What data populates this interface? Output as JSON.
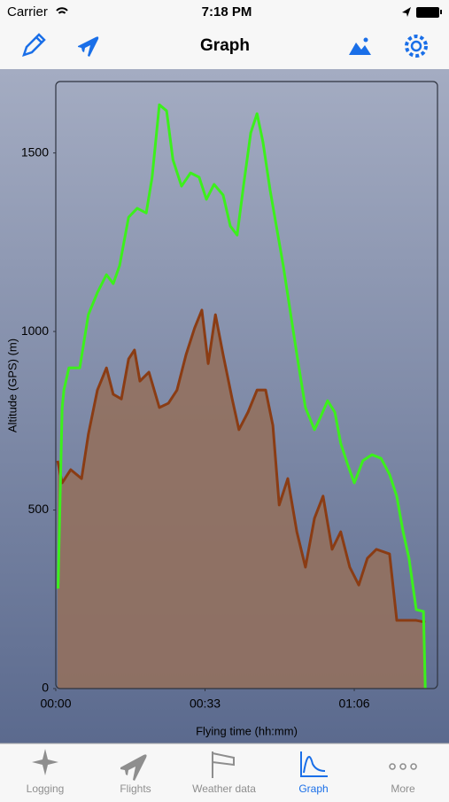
{
  "status_bar": {
    "carrier": "Carrier",
    "time": "7:18 PM"
  },
  "nav_bar": {
    "title": "Graph"
  },
  "chart_data": {
    "type": "line",
    "x_label": "Flying time (hh:mm)",
    "y_label": "Altitude (GPS) (m)",
    "xlim": [
      0,
      84.4
    ],
    "ylim": [
      0,
      1700
    ],
    "xticks": [
      {
        "value": 0,
        "label": "00:00"
      },
      {
        "value": 33,
        "label": "00:33"
      },
      {
        "value": 66,
        "label": "01:06"
      }
    ],
    "yticks": [
      0,
      500,
      1000,
      1500
    ],
    "grid": false,
    "series": [
      {
        "type": "area",
        "color": "#8a3c14",
        "fill_color": "#92705e",
        "x": [
          0.4,
          1.4,
          3.3,
          5.7,
          7.2,
          9.2,
          11.2,
          12.7,
          14.5,
          16.1,
          17.4,
          18.6,
          20.6,
          22.9,
          24.9,
          26.8,
          28.8,
          30.7,
          32.3,
          33.7,
          35.3,
          37.0,
          39.0,
          40.5,
          42.5,
          44.5,
          46.4,
          48.0,
          49.4,
          51.3,
          53.3,
          55.2,
          57.2,
          59.1,
          61.1,
          63.0,
          65.0,
          67.0,
          68.9,
          70.9,
          73.8,
          75.4,
          77.8,
          79.7,
          81.7
        ],
        "values": [
          638,
          576,
          613,
          588,
          712,
          836,
          898,
          824,
          811,
          923,
          948,
          861,
          886,
          787,
          799,
          836,
          935,
          1010,
          1060,
          910,
          1047,
          935,
          811,
          725,
          774,
          836,
          836,
          737,
          514,
          588,
          439,
          340,
          477,
          539,
          390,
          439,
          340,
          290,
          365,
          390,
          377,
          191,
          191,
          191,
          186
        ]
      },
      {
        "type": "line",
        "color": "#3cf01c",
        "x": [
          0.5,
          1.4,
          1.8,
          2.9,
          5.3,
          7.2,
          9.2,
          11.2,
          12.7,
          14.1,
          16.1,
          18.0,
          20.0,
          21.3,
          22.9,
          24.5,
          25.9,
          27.8,
          29.8,
          31.7,
          33.3,
          35.0,
          37.0,
          38.6,
          40.1,
          41.5,
          43.1,
          44.5,
          45.8,
          47.4,
          50.3,
          53.3,
          55.2,
          57.2,
          58.6,
          60.1,
          61.7,
          63.0,
          64.6,
          66.0,
          67.9,
          69.9,
          71.9,
          73.8,
          75.4,
          76.8,
          78.1,
          79.7,
          81.3,
          81.7
        ],
        "values": [
          280,
          785,
          836,
          898,
          898,
          1047,
          1109,
          1159,
          1134,
          1184,
          1320,
          1345,
          1332,
          1432,
          1635,
          1618,
          1481,
          1407,
          1444,
          1432,
          1370,
          1412,
          1382,
          1295,
          1270,
          1407,
          1556,
          1610,
          1531,
          1395,
          1184,
          936,
          787,
          725,
          762,
          806,
          774,
          687,
          625,
          576,
          638,
          655,
          645,
          600,
          538,
          439,
          365,
          221,
          216,
          0
        ]
      }
    ]
  },
  "tab_bar": {
    "items": [
      "Logging",
      "Flights",
      "Weather data",
      "Graph",
      "More"
    ]
  }
}
